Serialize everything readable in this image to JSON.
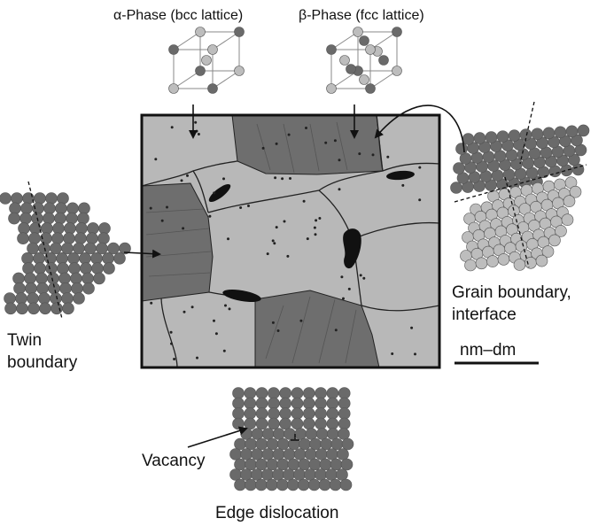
{
  "labels": {
    "alpha_phase": "α-Phase (bcc lattice)",
    "beta_phase": "β-Phase (fcc lattice)",
    "grain_boundary": [
      "Grain boundary,",
      "interface"
    ],
    "twin_boundary": [
      "Twin",
      "boundary"
    ],
    "scale": "nm–dm",
    "vacancy": "Vacancy",
    "edge_dislocation": "Edge dislocation"
  },
  "colors": {
    "light_grain": "#b8b8b8",
    "dark_grain": "#6e6e6e",
    "outline": "#111111",
    "atom_dark": "#6a6a6a",
    "atom_light": "#bdbdbd",
    "precipitate": "#111111"
  }
}
